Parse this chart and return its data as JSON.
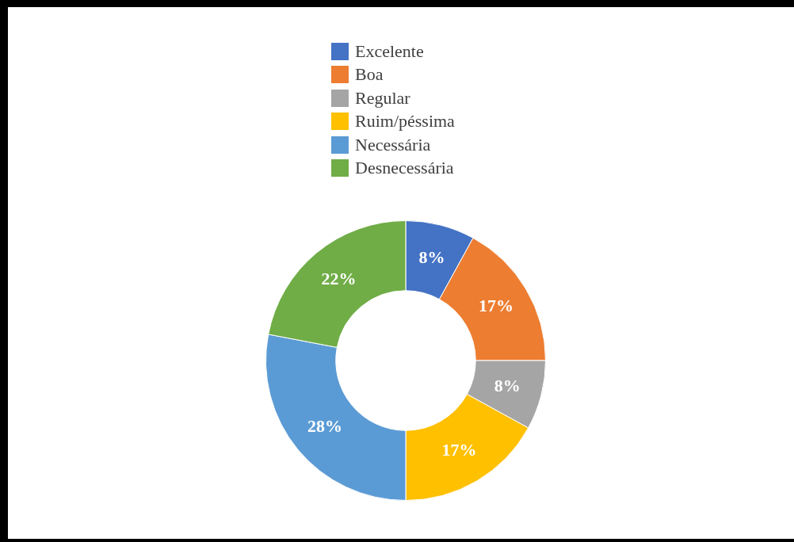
{
  "chart_data": {
    "type": "donut",
    "categories": [
      "Excelente",
      "Boa",
      "Regular",
      "Ruim/péssima",
      "Necessária",
      "Desnecessária"
    ],
    "values": [
      8,
      17,
      8,
      17,
      28,
      22
    ],
    "colors": [
      "#4472c4",
      "#ed7d31",
      "#a5a5a5",
      "#ffc000",
      "#5b9bd5",
      "#70ad47"
    ],
    "value_labels": [
      "8%",
      "17%",
      "8%",
      "17%",
      "28%",
      "22%"
    ],
    "legend": "top"
  }
}
